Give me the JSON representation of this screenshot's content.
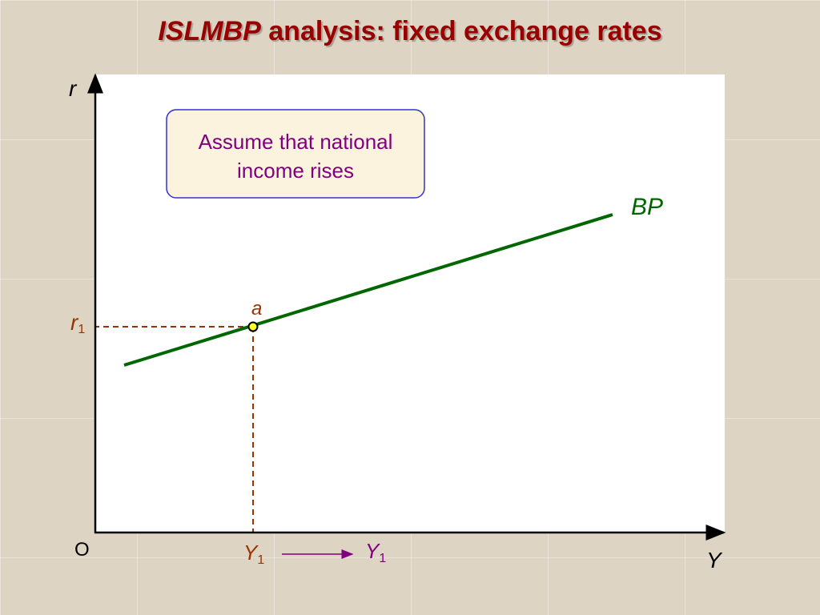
{
  "title": {
    "italic": "ISLMBP",
    "rest": "analysis: fixed exchange rates"
  },
  "axes": {
    "y_label": "r",
    "x_label": "Y",
    "origin": "O"
  },
  "note": {
    "lines": [
      "Assume that national",
      "income rises"
    ]
  },
  "curve": {
    "label": "BP"
  },
  "point": {
    "label": "a"
  },
  "r_level": {
    "main": "r",
    "sub": "1"
  },
  "y_level": {
    "main": "Y",
    "sub": "1"
  },
  "y_new": {
    "main": "Y",
    "sub": "1"
  }
}
